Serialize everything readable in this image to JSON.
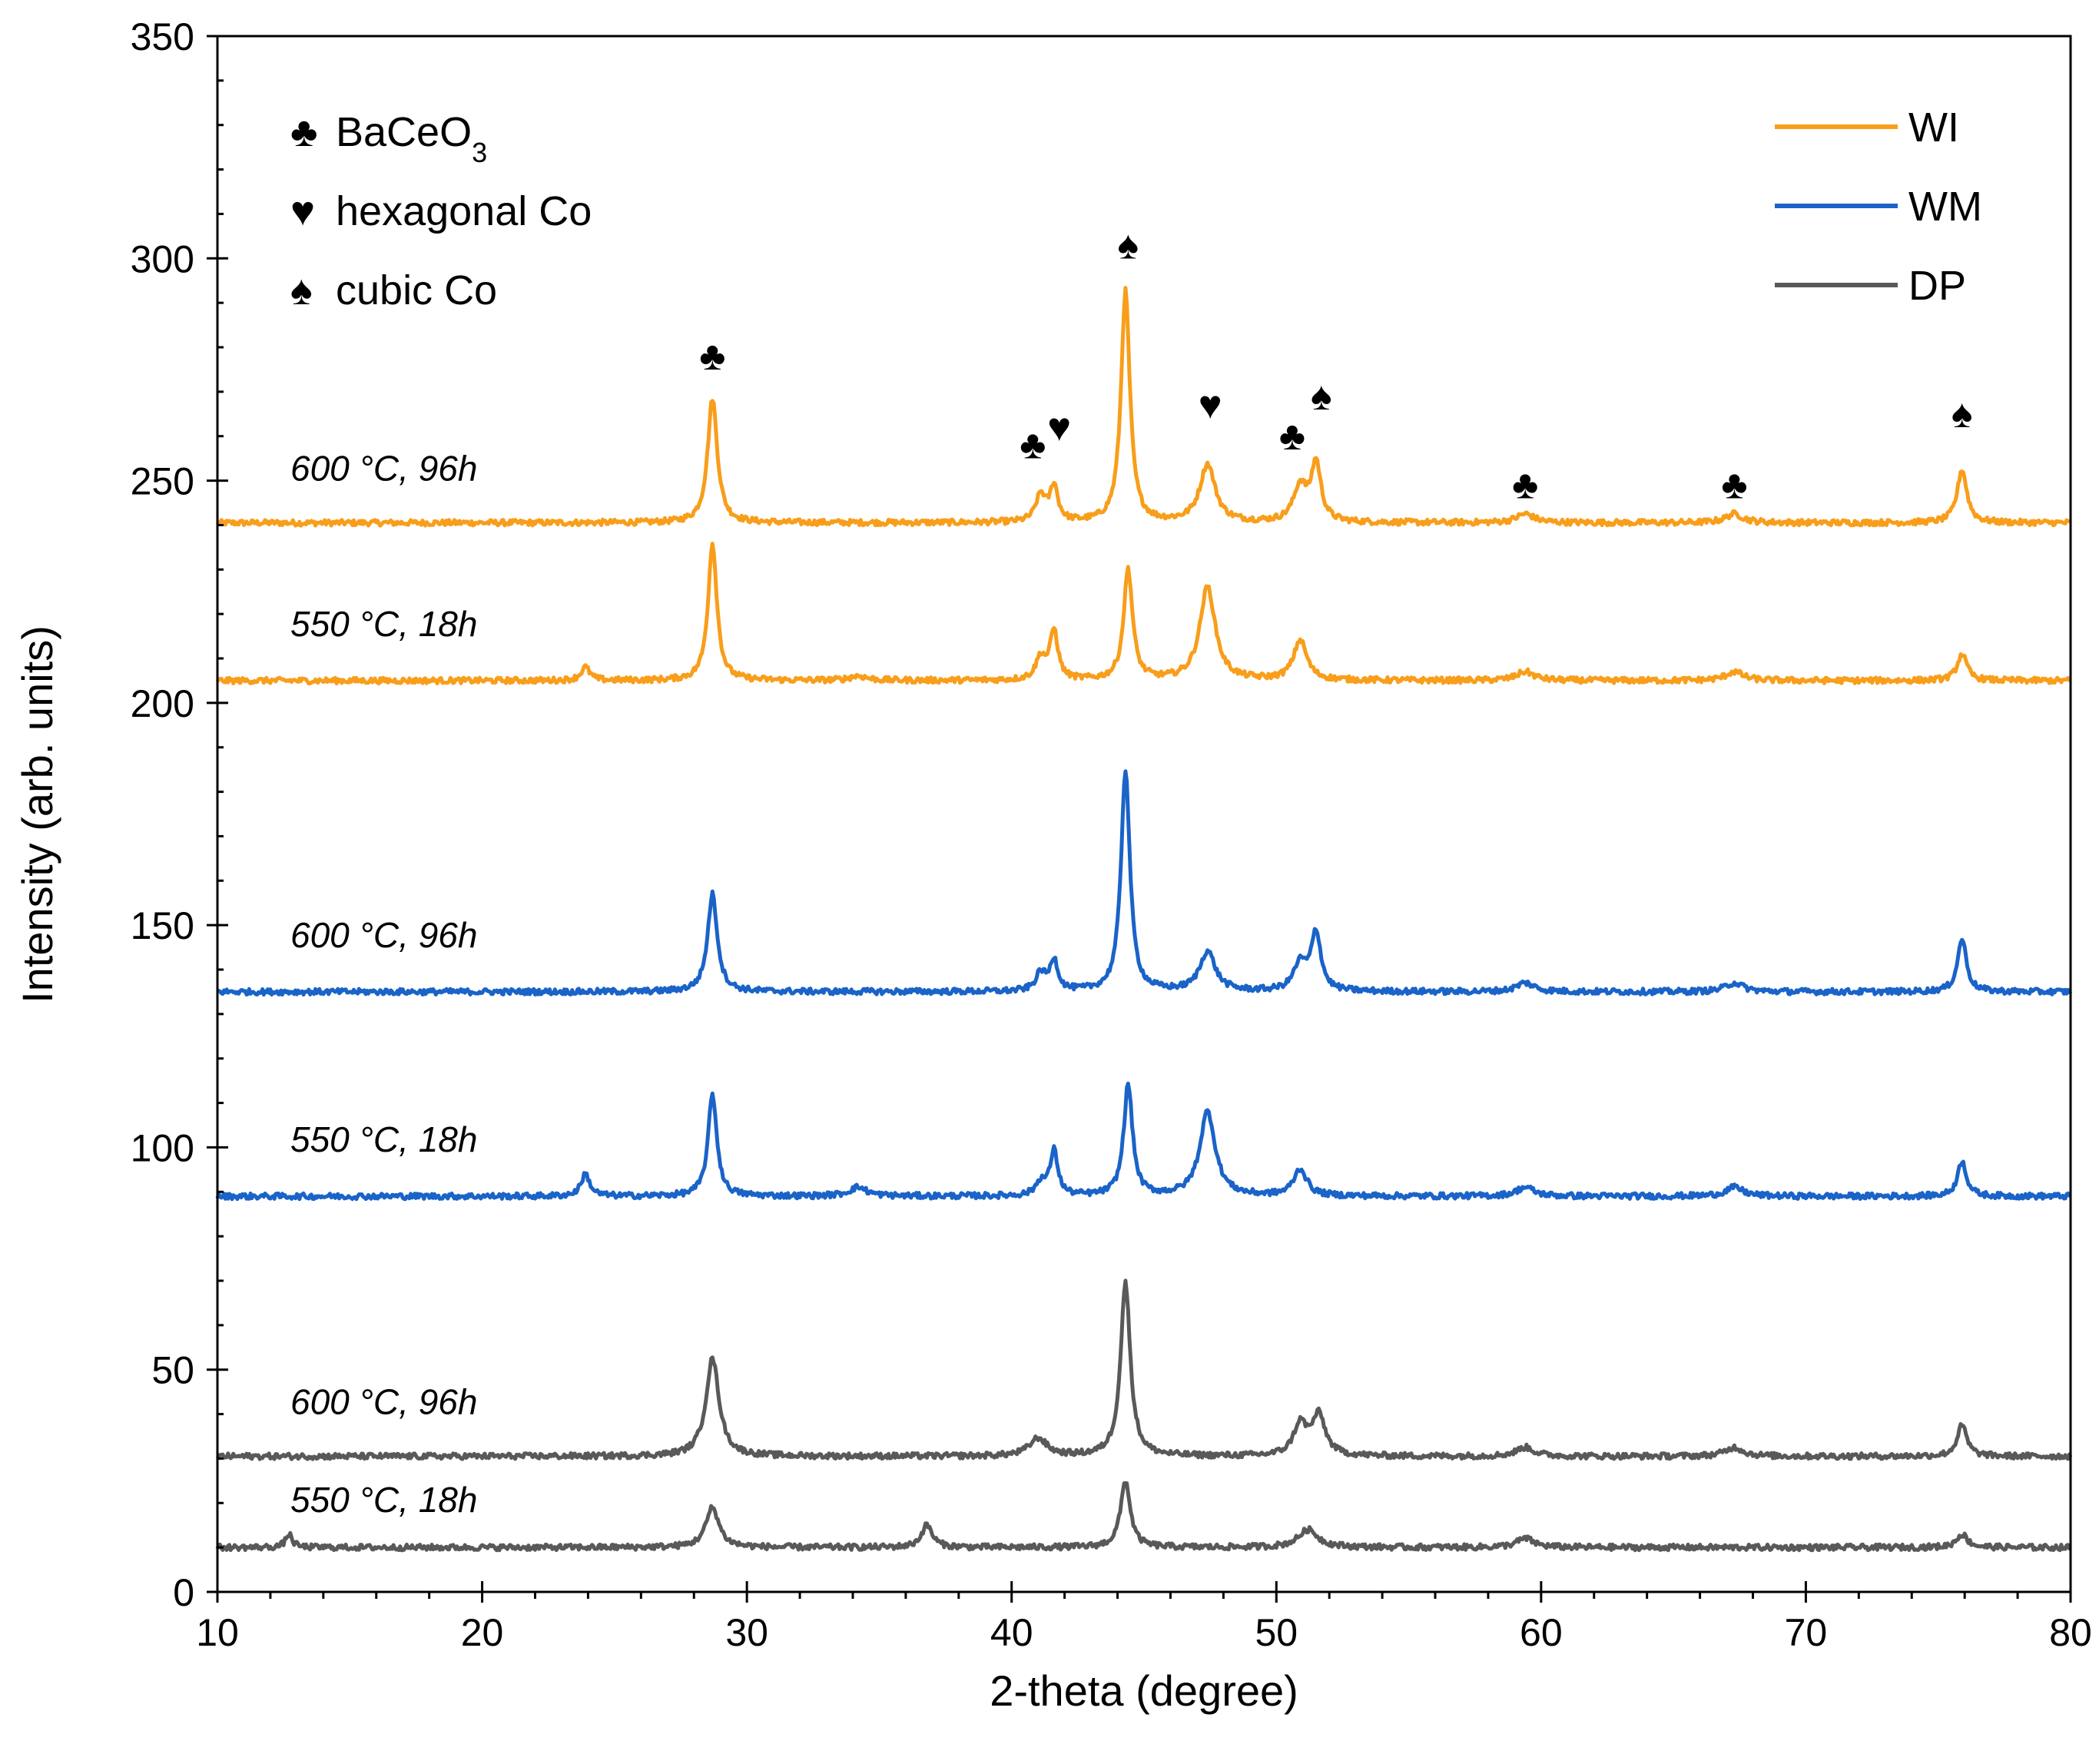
{
  "chart_data": {
    "type": "line",
    "title": "",
    "xlabel": "2-theta (degree)",
    "ylabel": "Intensity (arb. units)",
    "xlim": [
      10,
      80
    ],
    "ylim": [
      0,
      350
    ],
    "x_ticks": [
      10,
      20,
      30,
      40,
      50,
      60,
      70,
      80
    ],
    "y_ticks": [
      0,
      50,
      100,
      150,
      200,
      250,
      300,
      350
    ],
    "grid": false,
    "legend_position": "top-right",
    "colors": {
      "WI": "#F89E1B",
      "WM": "#1A63C8",
      "DP": "#595959"
    },
    "legend": [
      {
        "name": "WI",
        "color": "#F89E1B"
      },
      {
        "name": "WM",
        "color": "#1A63C8"
      },
      {
        "name": "DP",
        "color": "#595959"
      }
    ],
    "phase_legend": [
      {
        "symbol": "♣",
        "label": "BaCeO",
        "subscript": "3"
      },
      {
        "symbol": "♥",
        "label": "hexagonal Co",
        "subscript": ""
      },
      {
        "symbol": "♠",
        "label": "cubic Co",
        "subscript": ""
      }
    ],
    "series": [
      {
        "name": "WI",
        "condition": "600 °C, 96h",
        "baseline": 240.5,
        "label_y": 250,
        "peaks": [
          [
            28.7,
            28,
            0.22
          ],
          [
            41.1,
            6,
            0.22
          ],
          [
            41.6,
            8,
            0.18
          ],
          [
            44.3,
            52,
            0.2
          ],
          [
            47.4,
            13,
            0.35
          ],
          [
            50.9,
            8,
            0.3
          ],
          [
            51.5,
            13,
            0.22
          ],
          [
            59.4,
            2,
            0.4
          ],
          [
            67.3,
            2,
            0.4
          ],
          [
            75.9,
            12,
            0.22
          ]
        ]
      },
      {
        "name": "WI",
        "condition": "550 °C, 18h",
        "baseline": 205,
        "label_y": 215,
        "peaks": [
          [
            23.9,
            3,
            0.2
          ],
          [
            28.7,
            31,
            0.2
          ],
          [
            34.2,
            1,
            0.4
          ],
          [
            41.1,
            5,
            0.22
          ],
          [
            41.6,
            11,
            0.18
          ],
          [
            44.4,
            25,
            0.2
          ],
          [
            47.4,
            21,
            0.35
          ],
          [
            50.9,
            9,
            0.3
          ],
          [
            59.4,
            2,
            0.4
          ],
          [
            67.3,
            2,
            0.4
          ],
          [
            75.9,
            6,
            0.22
          ]
        ]
      },
      {
        "name": "WM",
        "condition": "600 °C, 96h",
        "baseline": 135,
        "label_y": 145,
        "peaks": [
          [
            28.7,
            22,
            0.22
          ],
          [
            41.1,
            4,
            0.22
          ],
          [
            41.6,
            7,
            0.18
          ],
          [
            44.3,
            50,
            0.2
          ],
          [
            47.4,
            9,
            0.35
          ],
          [
            50.9,
            6,
            0.3
          ],
          [
            51.5,
            13,
            0.22
          ],
          [
            59.4,
            2,
            0.4
          ],
          [
            67.3,
            2,
            0.4
          ],
          [
            75.9,
            12,
            0.2
          ]
        ]
      },
      {
        "name": "WM",
        "condition": "550 °C, 18h",
        "baseline": 89,
        "label_y": 99,
        "peaks": [
          [
            23.9,
            5,
            0.2
          ],
          [
            28.7,
            23,
            0.2
          ],
          [
            34.2,
            2,
            0.4
          ],
          [
            41.1,
            3,
            0.22
          ],
          [
            41.6,
            10,
            0.18
          ],
          [
            44.4,
            25,
            0.2
          ],
          [
            47.4,
            19,
            0.35
          ],
          [
            50.9,
            6,
            0.3
          ],
          [
            59.4,
            2,
            0.4
          ],
          [
            67.3,
            2,
            0.4
          ],
          [
            75.9,
            8,
            0.2
          ]
        ]
      },
      {
        "name": "DP",
        "condition": "600 °C, 96h",
        "baseline": 30.5,
        "label_y": 40,
        "peaks": [
          [
            28.7,
            22,
            0.3
          ],
          [
            41.0,
            4,
            0.4
          ],
          [
            44.3,
            39,
            0.22
          ],
          [
            50.9,
            7,
            0.3
          ],
          [
            51.6,
            9,
            0.3
          ],
          [
            59.4,
            2,
            0.4
          ],
          [
            67.3,
            2,
            0.4
          ],
          [
            75.9,
            7,
            0.22
          ]
        ]
      },
      {
        "name": "DP",
        "condition": "550 °C, 18h",
        "baseline": 10,
        "label_y": 18,
        "peaks": [
          [
            12.7,
            3,
            0.15
          ],
          [
            28.7,
            9,
            0.3
          ],
          [
            36.8,
            5,
            0.25
          ],
          [
            44.3,
            15,
            0.22
          ],
          [
            51.2,
            4,
            0.45
          ],
          [
            59.4,
            2,
            0.4
          ],
          [
            75.9,
            3,
            0.25
          ]
        ]
      }
    ],
    "annotations": [
      {
        "symbol": "♣",
        "x": 28.7,
        "y": 275
      },
      {
        "symbol": "♠",
        "x": 44.4,
        "y": 300
      },
      {
        "symbol": "♣",
        "x": 40.8,
        "y": 255
      },
      {
        "symbol": "♥",
        "x": 41.8,
        "y": 259
      },
      {
        "symbol": "♥",
        "x": 47.5,
        "y": 264
      },
      {
        "symbol": "♣",
        "x": 50.6,
        "y": 257
      },
      {
        "symbol": "♠",
        "x": 51.7,
        "y": 266
      },
      {
        "symbol": "♣",
        "x": 59.4,
        "y": 246
      },
      {
        "symbol": "♣",
        "x": 67.3,
        "y": 246
      },
      {
        "symbol": "♠",
        "x": 75.9,
        "y": 262
      }
    ]
  }
}
